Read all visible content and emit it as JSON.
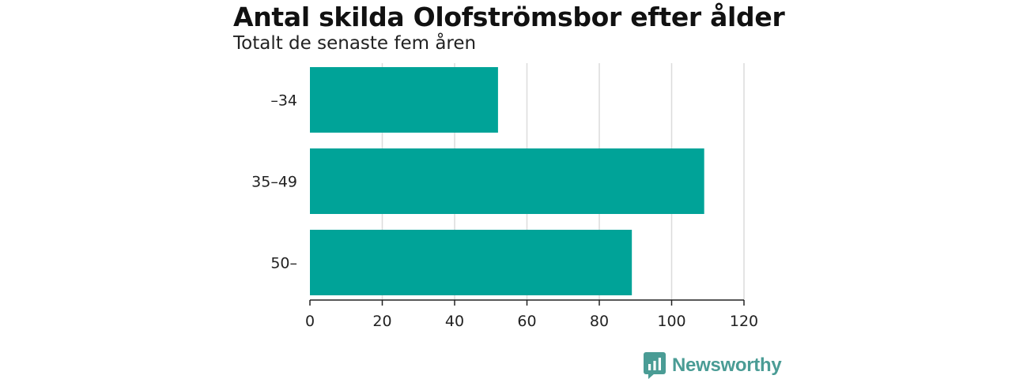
{
  "chart_data": {
    "type": "bar",
    "orientation": "horizontal",
    "title": "Antal skilda Olofströmsbor efter ålder",
    "subtitle": "Totalt de senaste fem åren",
    "categories": [
      "–34",
      "35–49",
      "50–"
    ],
    "values": [
      52,
      109,
      89
    ],
    "xlim": [
      0,
      120
    ],
    "xticks": [
      0,
      20,
      40,
      60,
      80,
      100,
      120
    ],
    "grid": true,
    "bar_color": "#00a398"
  },
  "brand": {
    "name": "Newsworthy",
    "color": "#4a9c95"
  }
}
